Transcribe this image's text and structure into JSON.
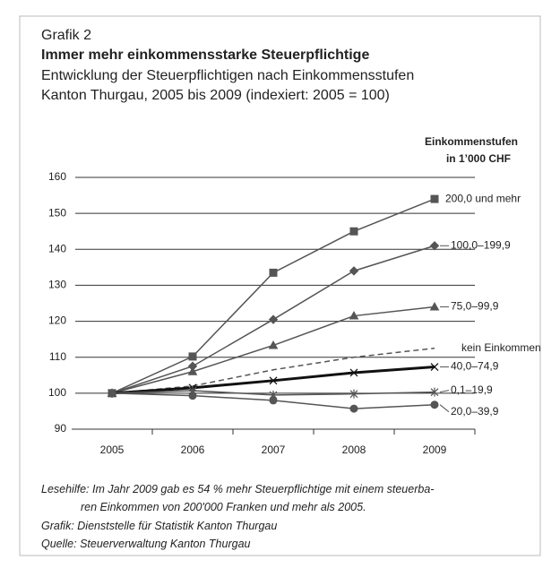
{
  "chart_data": {
    "type": "line",
    "label": "Grafik 2",
    "title": "Immer mehr einkommensstarke Steuerpflichtige",
    "subtitle": [
      "Entwicklung der Steuerpflichtigen nach Einkommensstufen",
      "Kanton Thurgau, 2005 bis 2009 (indexiert: 2005 = 100)"
    ],
    "legend_title": [
      "Einkommenstufen",
      "in 1’000 CHF"
    ],
    "categories": [
      "2005",
      "2006",
      "2007",
      "2008",
      "2009"
    ],
    "ylim": [
      90,
      160
    ],
    "yticks": [
      90,
      100,
      110,
      120,
      130,
      140,
      150,
      160
    ],
    "grid": true,
    "series": [
      {
        "name": "200,0 und mehr",
        "color": "#555555",
        "marker": "square",
        "values": [
          100,
          110.2,
          133.5,
          145,
          154
        ]
      },
      {
        "name": "100,0–199,9",
        "color": "#555555",
        "marker": "diamond",
        "values": [
          100,
          107.5,
          120.5,
          134,
          141
        ]
      },
      {
        "name": "75,0–99,9",
        "color": "#555555",
        "marker": "triangle",
        "values": [
          100,
          106,
          113.3,
          121.5,
          124
        ]
      },
      {
        "name": "kein Einkommen",
        "color": "#555555",
        "line_style": "dashed",
        "values": [
          100,
          102,
          106.5,
          110,
          112.5
        ]
      },
      {
        "name": "40,0–74,9",
        "color": "#111111",
        "marker": "x",
        "line_width": 3,
        "values": [
          100,
          101.5,
          103.5,
          105.7,
          107.3
        ]
      },
      {
        "name": "0,1–19,9",
        "color": "#555555",
        "marker": "asterisk",
        "values": [
          100,
          100.7,
          99.5,
          99.8,
          100.3
        ]
      },
      {
        "name": "20,0–39,9",
        "color": "#555555",
        "marker": "circle",
        "values": [
          100,
          99.3,
          98,
          95.7,
          96.8
        ]
      }
    ],
    "notes": [
      "Lesehilfe: Im Jahr 2009 gab es 54 % mehr Steuerpflichtige mit einem steuerba-",
      "ren Einkommen von 200'000 Franken und mehr als 2005.",
      "Grafik: Dienststelle für Statistik Kanton Thurgau",
      "Quelle: Steuerverwaltung Kanton Thurgau"
    ]
  }
}
